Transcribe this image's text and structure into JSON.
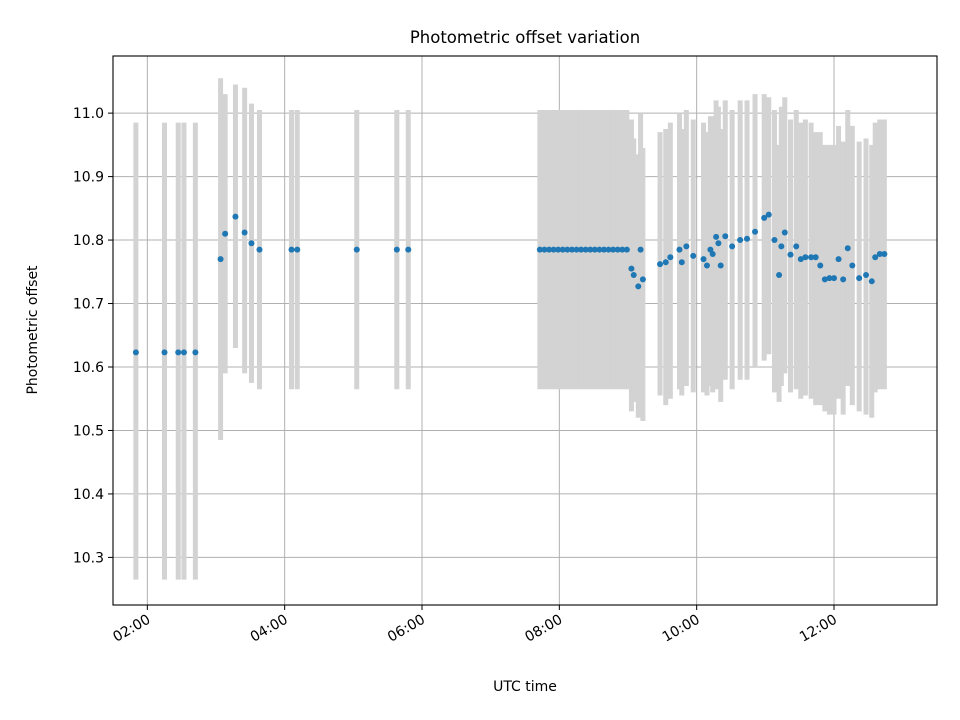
{
  "chart_data": {
    "type": "scatter",
    "title": "Photometric offset variation",
    "xlabel": "UTC time",
    "ylabel": "Photometric offset",
    "x_tick_labels": [
      "02:00",
      "04:00",
      "06:00",
      "08:00",
      "10:00",
      "12:00"
    ],
    "x_tick_hours": [
      2,
      4,
      6,
      8,
      10,
      12
    ],
    "xlim_hours": [
      1.5,
      13.5
    ],
    "y_ticks": [
      10.3,
      10.4,
      10.5,
      10.6,
      10.7,
      10.8,
      10.9,
      11.0
    ],
    "y_tick_labels": [
      "10.3",
      "10.4",
      "10.5",
      "10.6",
      "10.7",
      "10.8",
      "10.9",
      "11.0"
    ],
    "ylim": [
      10.225,
      11.09
    ],
    "grid": true,
    "colors": {
      "marker": "#1f77b4",
      "errorbar": "#d3d3d3",
      "grid": "#b0b0b0"
    },
    "series": [
      {
        "x_time": [
          "01:50",
          "02:15",
          "02:27",
          "02:32",
          "02:42",
          "03:04",
          "03:08",
          "03:17",
          "03:25",
          "03:31",
          "03:38",
          "04:06",
          "04:11",
          "05:03",
          "05:38",
          "05:48",
          "07:43",
          "07:47",
          "07:51",
          "07:55",
          "07:59",
          "08:03",
          "08:07",
          "08:11",
          "08:15",
          "08:19",
          "08:23",
          "08:27",
          "08:31",
          "08:35",
          "08:39",
          "08:43",
          "08:47",
          "08:51",
          "08:55",
          "08:59",
          "09:03",
          "09:05",
          "09:09",
          "09:11",
          "09:13",
          "09:28",
          "09:33",
          "09:37",
          "09:45",
          "09:47",
          "09:51",
          "09:57",
          "10:06",
          "10:09",
          "10:12",
          "10:14",
          "10:17",
          "10:19",
          "10:21",
          "10:25",
          "10:31",
          "10:38",
          "10:44",
          "10:51",
          "10:59",
          "11:03",
          "11:08",
          "11:12",
          "11:14",
          "11:17",
          "11:22",
          "11:27",
          "11:31",
          "11:35",
          "11:40",
          "11:44",
          "11:48",
          "11:52",
          "11:56",
          "12:00",
          "12:04",
          "12:08",
          "12:12",
          "12:16",
          "12:22",
          "12:28",
          "12:33",
          "12:36",
          "12:40",
          "12:44"
        ],
        "y": [
          10.623,
          10.623,
          10.623,
          10.623,
          10.623,
          10.77,
          10.81,
          10.837,
          10.812,
          10.795,
          10.785,
          10.785,
          10.785,
          10.785,
          10.785,
          10.785,
          10.785,
          10.785,
          10.785,
          10.785,
          10.785,
          10.785,
          10.785,
          10.785,
          10.785,
          10.785,
          10.785,
          10.785,
          10.785,
          10.785,
          10.785,
          10.785,
          10.785,
          10.785,
          10.785,
          10.785,
          10.755,
          10.745,
          10.727,
          10.785,
          10.738,
          10.762,
          10.765,
          10.773,
          10.785,
          10.765,
          10.79,
          10.775,
          10.77,
          10.76,
          10.785,
          10.778,
          10.805,
          10.795,
          10.76,
          10.806,
          10.79,
          10.8,
          10.802,
          10.813,
          10.835,
          10.84,
          10.8,
          10.745,
          10.79,
          10.812,
          10.777,
          10.79,
          10.77,
          10.773,
          10.773,
          10.773,
          10.76,
          10.738,
          10.74,
          10.74,
          10.77,
          10.738,
          10.787,
          10.76,
          10.74,
          10.745,
          10.735,
          10.773,
          10.778,
          10.778
        ],
        "yerr_low": [
          10.265,
          10.265,
          10.265,
          10.265,
          10.265,
          10.485,
          10.59,
          10.63,
          10.59,
          10.575,
          10.565,
          10.565,
          10.565,
          10.565,
          10.565,
          10.565,
          10.565,
          10.565,
          10.565,
          10.565,
          10.565,
          10.565,
          10.565,
          10.565,
          10.565,
          10.565,
          10.565,
          10.565,
          10.565,
          10.565,
          10.565,
          10.565,
          10.565,
          10.565,
          10.565,
          10.565,
          10.53,
          10.545,
          10.52,
          10.56,
          10.515,
          10.555,
          10.54,
          10.55,
          10.565,
          10.555,
          10.57,
          10.56,
          10.56,
          10.555,
          10.57,
          10.56,
          10.565,
          10.57,
          10.545,
          10.58,
          10.565,
          10.58,
          10.58,
          10.6,
          10.61,
          10.62,
          10.56,
          10.545,
          10.57,
          10.59,
          10.56,
          10.565,
          10.55,
          10.555,
          10.55,
          10.54,
          10.54,
          10.53,
          10.525,
          10.525,
          10.55,
          10.525,
          10.57,
          10.54,
          10.53,
          10.525,
          10.52,
          10.56,
          10.565,
          10.565
        ],
        "yerr_high": [
          10.985,
          10.985,
          10.985,
          10.985,
          10.985,
          11.055,
          11.03,
          11.045,
          11.04,
          11.015,
          11.005,
          11.005,
          11.005,
          11.005,
          11.005,
          11.005,
          11.005,
          11.005,
          11.005,
          11.005,
          11.005,
          11.005,
          11.005,
          11.005,
          11.005,
          11.005,
          11.005,
          11.005,
          11.005,
          11.005,
          11.005,
          11.005,
          11.005,
          11.005,
          11.005,
          11.005,
          10.99,
          10.96,
          10.935,
          11.0,
          10.945,
          10.97,
          10.975,
          10.985,
          11.0,
          10.975,
          11.005,
          10.99,
          10.985,
          10.97,
          10.995,
          10.995,
          11.02,
          11.01,
          10.975,
          11.02,
          11.005,
          11.02,
          11.02,
          11.03,
          11.03,
          11.025,
          11.005,
          10.95,
          11.01,
          11.025,
          10.99,
          11.005,
          10.985,
          10.99,
          10.985,
          10.97,
          10.97,
          10.95,
          10.95,
          10.95,
          10.98,
          10.955,
          11.005,
          10.98,
          10.955,
          10.96,
          10.95,
          10.985,
          10.99,
          10.99
        ]
      }
    ]
  }
}
